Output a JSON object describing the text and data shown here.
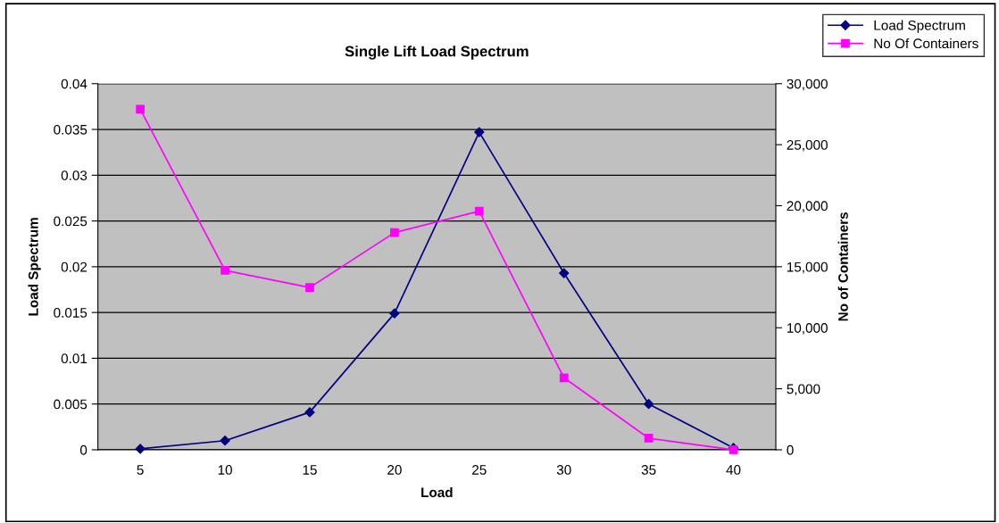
{
  "chart_data": {
    "type": "line",
    "title": "Single Lift Load Spectrum",
    "xlabel": "Load",
    "ylabel": "Load Spectrum",
    "y2label": "No of Containers",
    "categories": [
      "5",
      "10",
      "15",
      "20",
      "25",
      "30",
      "35",
      "40"
    ],
    "series": [
      {
        "name": "Load Spectrum",
        "color": "#000080",
        "marker": "diamond",
        "values": [
          0.0001,
          0.001,
          0.0041,
          0.0149,
          0.0347,
          0.0193,
          0.005,
          0.0002
        ]
      },
      {
        "name": "No Of Containers",
        "color": "#ff00ff",
        "marker": "square",
        "axis": "y2",
        "values": [
          27900,
          14700,
          13300,
          17800,
          19550,
          5900,
          950,
          0
        ]
      }
    ],
    "ylim": [
      0,
      0.04
    ],
    "yticks": [
      0,
      0.005,
      0.01,
      0.015,
      0.02,
      0.025,
      0.03,
      0.035,
      0.04
    ],
    "y2lim": [
      0,
      30000
    ],
    "y2ticks": [
      {
        "value": 0,
        "label": "0"
      },
      {
        "value": 5000,
        "label": "5,000"
      },
      {
        "value": 10000,
        "label": "10,000"
      },
      {
        "value": 15000,
        "label": "15,000"
      },
      {
        "value": 20000,
        "label": "20,000"
      },
      {
        "value": 25000,
        "label": "25,000"
      },
      {
        "value": 30000,
        "label": "30,000"
      }
    ],
    "grid": "y",
    "legend": "top right",
    "line_style": "solid"
  }
}
